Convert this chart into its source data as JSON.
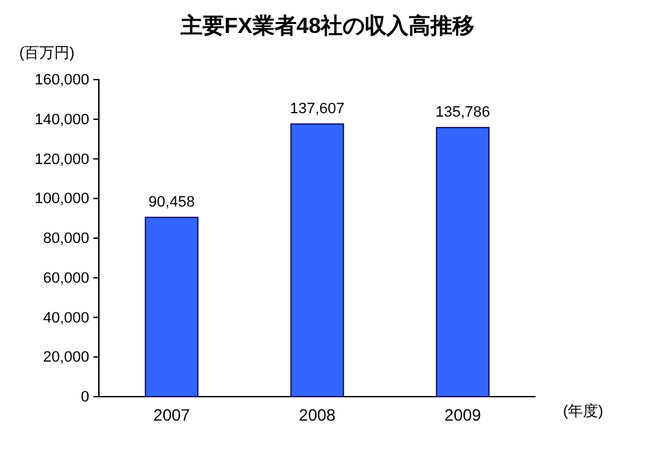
{
  "chart_data": {
    "type": "bar",
    "title": "主要FX業者48社の収入高推移",
    "ylabel": "(百万円)",
    "xlabel": "(年度)",
    "categories": [
      "2007",
      "2008",
      "2009"
    ],
    "values": [
      90458,
      137607,
      135786
    ],
    "color": "#3366ff",
    "value_labels": [
      "90,458",
      "137,607",
      "135,786"
    ],
    "ylim": [
      0,
      160000
    ],
    "yticks": [
      {
        "value": 0,
        "label": "0"
      },
      {
        "value": 20000,
        "label": "20,000"
      },
      {
        "value": 40000,
        "label": "40,000"
      },
      {
        "value": 60000,
        "label": "60,000"
      },
      {
        "value": 80000,
        "label": "80,000"
      },
      {
        "value": 100000,
        "label": "100,000"
      },
      {
        "value": 120000,
        "label": "120,000"
      },
      {
        "value": 140000,
        "label": "140,000"
      },
      {
        "value": 160000,
        "label": "160,000"
      }
    ],
    "grid": false
  }
}
